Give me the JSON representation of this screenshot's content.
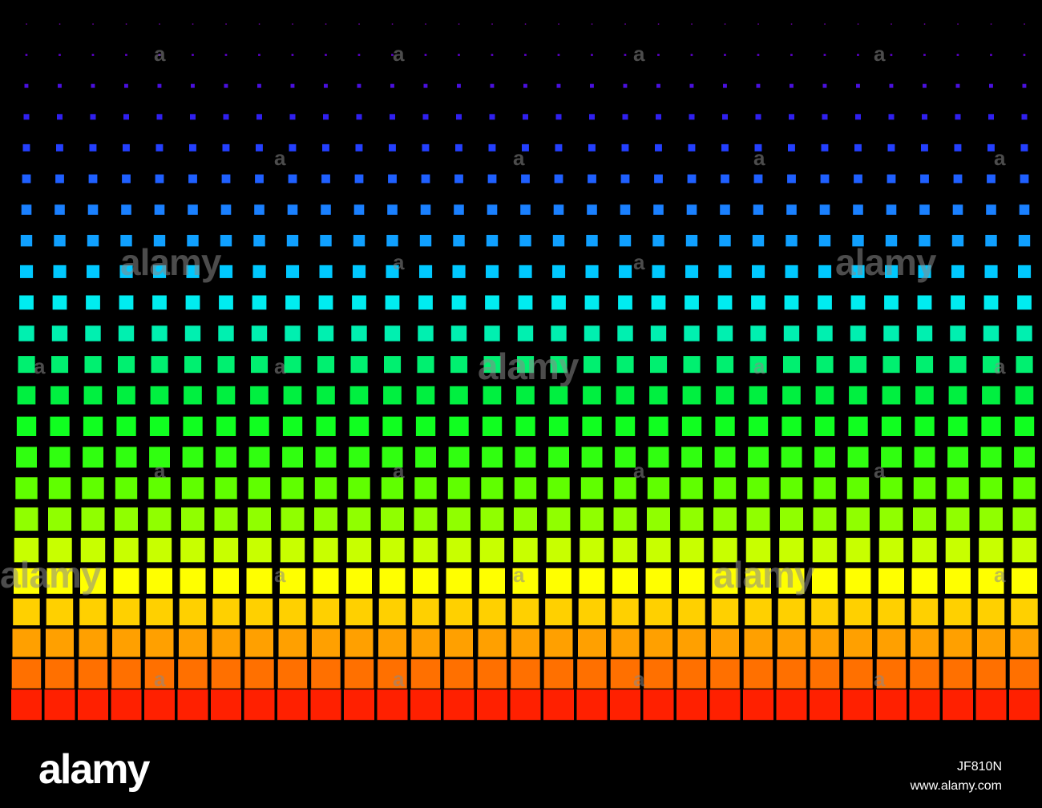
{
  "image": {
    "description_colors": {
      "background": "#000000",
      "row_colors": [
        "#6a00a8",
        "#5a00c8",
        "#4a10e0",
        "#3020f0",
        "#2440ff",
        "#1f60ff",
        "#1a80ff",
        "#10a0ff",
        "#00c8ff",
        "#00ecf0",
        "#00f0b0",
        "#00f070",
        "#00f040",
        "#10ff20",
        "#30ff10",
        "#60ff00",
        "#90ff00",
        "#c8ff00",
        "#ffff00",
        "#ffd000",
        "#ffa000",
        "#ff7000",
        "#ff2000"
      ]
    },
    "watermark_text": "alamy",
    "watermark_small_glyph": "a"
  },
  "footer": {
    "logo": "alamy",
    "image_id": "JF810N",
    "site": "www.alamy.com"
  }
}
